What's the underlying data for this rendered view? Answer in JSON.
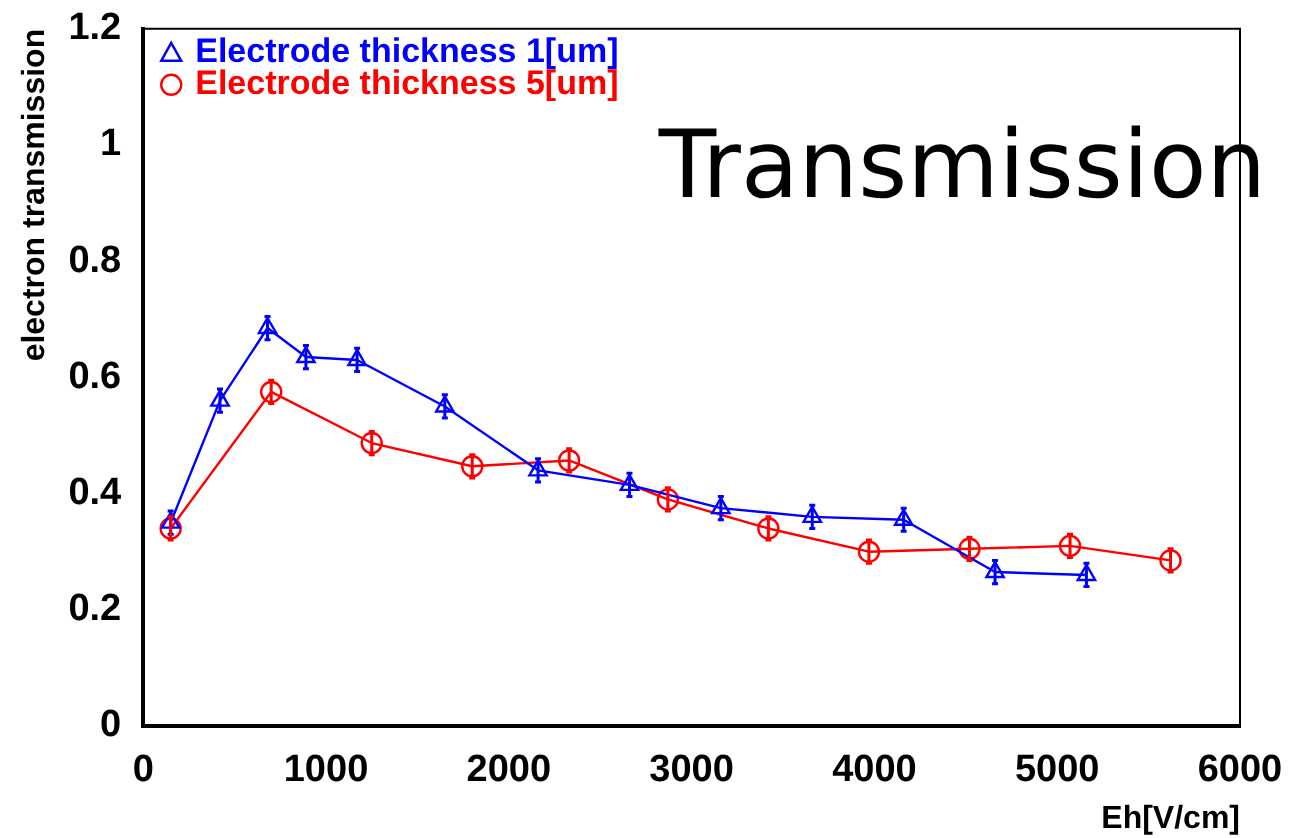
{
  "chart_data": {
    "type": "line",
    "xlabel": "Eh[V/cm]",
    "ylabel": "electron transmission",
    "annotations": [
      "Transmission"
    ],
    "xlim": [
      0,
      6000
    ],
    "xticks": [
      0,
      1000,
      2000,
      3000,
      4000,
      5000,
      6000
    ],
    "ylim": [
      0,
      1.2
    ],
    "yticks": [
      0,
      0.2,
      0.4,
      0.6,
      0.8,
      1,
      1.2
    ],
    "grid": false,
    "legend": "top left",
    "line_style": "solid",
    "series": [
      {
        "name": "Electrode thickness 1[um]",
        "color": "#0000ff",
        "marker": "triangle",
        "x": [
          150,
          420,
          680,
          890,
          1170,
          1650,
          2160,
          2660,
          3160,
          3660,
          4160,
          4660,
          5160
        ],
        "values": [
          0.35,
          0.56,
          0.685,
          0.635,
          0.63,
          0.55,
          0.44,
          0.415,
          0.375,
          0.36,
          0.355,
          0.265,
          0.26
        ],
        "errors": [
          0.02,
          0.02,
          0.02,
          0.02,
          0.02,
          0.02,
          0.02,
          0.02,
          0.02,
          0.02,
          0.02,
          0.02,
          0.02
        ]
      },
      {
        "name": "Electrode thickness 5[um]",
        "color": "#ff0000",
        "marker": "circle",
        "x": [
          150,
          700,
          1250,
          1800,
          2330,
          2870,
          3420,
          3970,
          4520,
          5070,
          5620
        ],
        "values": [
          0.34,
          0.575,
          0.487,
          0.447,
          0.457,
          0.39,
          0.34,
          0.3,
          0.305,
          0.31,
          0.285
        ],
        "errors": [
          0.02,
          0.02,
          0.02,
          0.02,
          0.02,
          0.02,
          0.02,
          0.02,
          0.02,
          0.02,
          0.02
        ]
      }
    ]
  }
}
